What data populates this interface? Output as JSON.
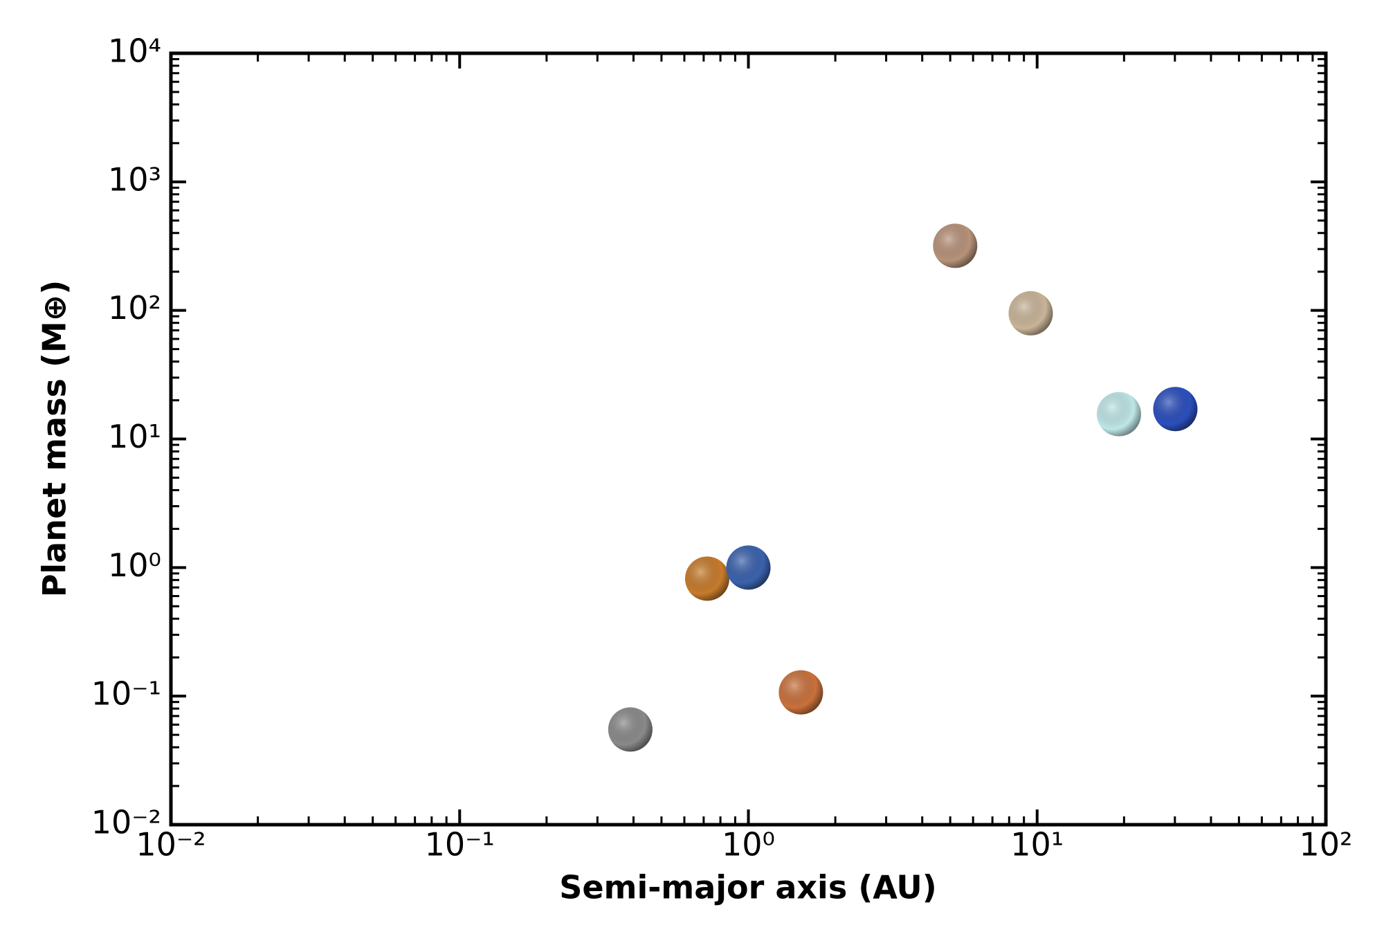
{
  "chart_data": {
    "type": "scatter",
    "xlabel": "Semi-major axis (AU)",
    "ylabel": "Planet mass (M⊕)",
    "xscale": "log",
    "yscale": "log",
    "xlim": [
      0.01,
      100
    ],
    "ylim": [
      0.01,
      10000
    ],
    "xticks": [
      {
        "value": 0.01,
        "label": "10⁻²"
      },
      {
        "value": 0.1,
        "label": "10⁻¹"
      },
      {
        "value": 1,
        "label": "10⁰"
      },
      {
        "value": 10,
        "label": "10¹"
      },
      {
        "value": 100,
        "label": "10²"
      }
    ],
    "yticks": [
      {
        "value": 0.01,
        "label": "10⁻²"
      },
      {
        "value": 0.1,
        "label": "10⁻¹"
      },
      {
        "value": 1,
        "label": "10⁰"
      },
      {
        "value": 10,
        "label": "10¹"
      },
      {
        "value": 100,
        "label": "10²"
      },
      {
        "value": 1000,
        "label": "10³"
      },
      {
        "value": 10000,
        "label": "10⁴"
      }
    ],
    "x": [
      0.39,
      0.72,
      1.0,
      1.52,
      5.2,
      9.5,
      19.2,
      30.1
    ],
    "values": [
      0.055,
      0.82,
      1.0,
      0.107,
      318,
      95,
      15.6,
      17.1
    ],
    "colors": [
      "#8a8a8a",
      "#c77b2c",
      "#3b62ad",
      "#c9713c",
      "#b8927a",
      "#c9b498",
      "#bfe6e6",
      "#2c4fbc"
    ],
    "grid": false
  }
}
